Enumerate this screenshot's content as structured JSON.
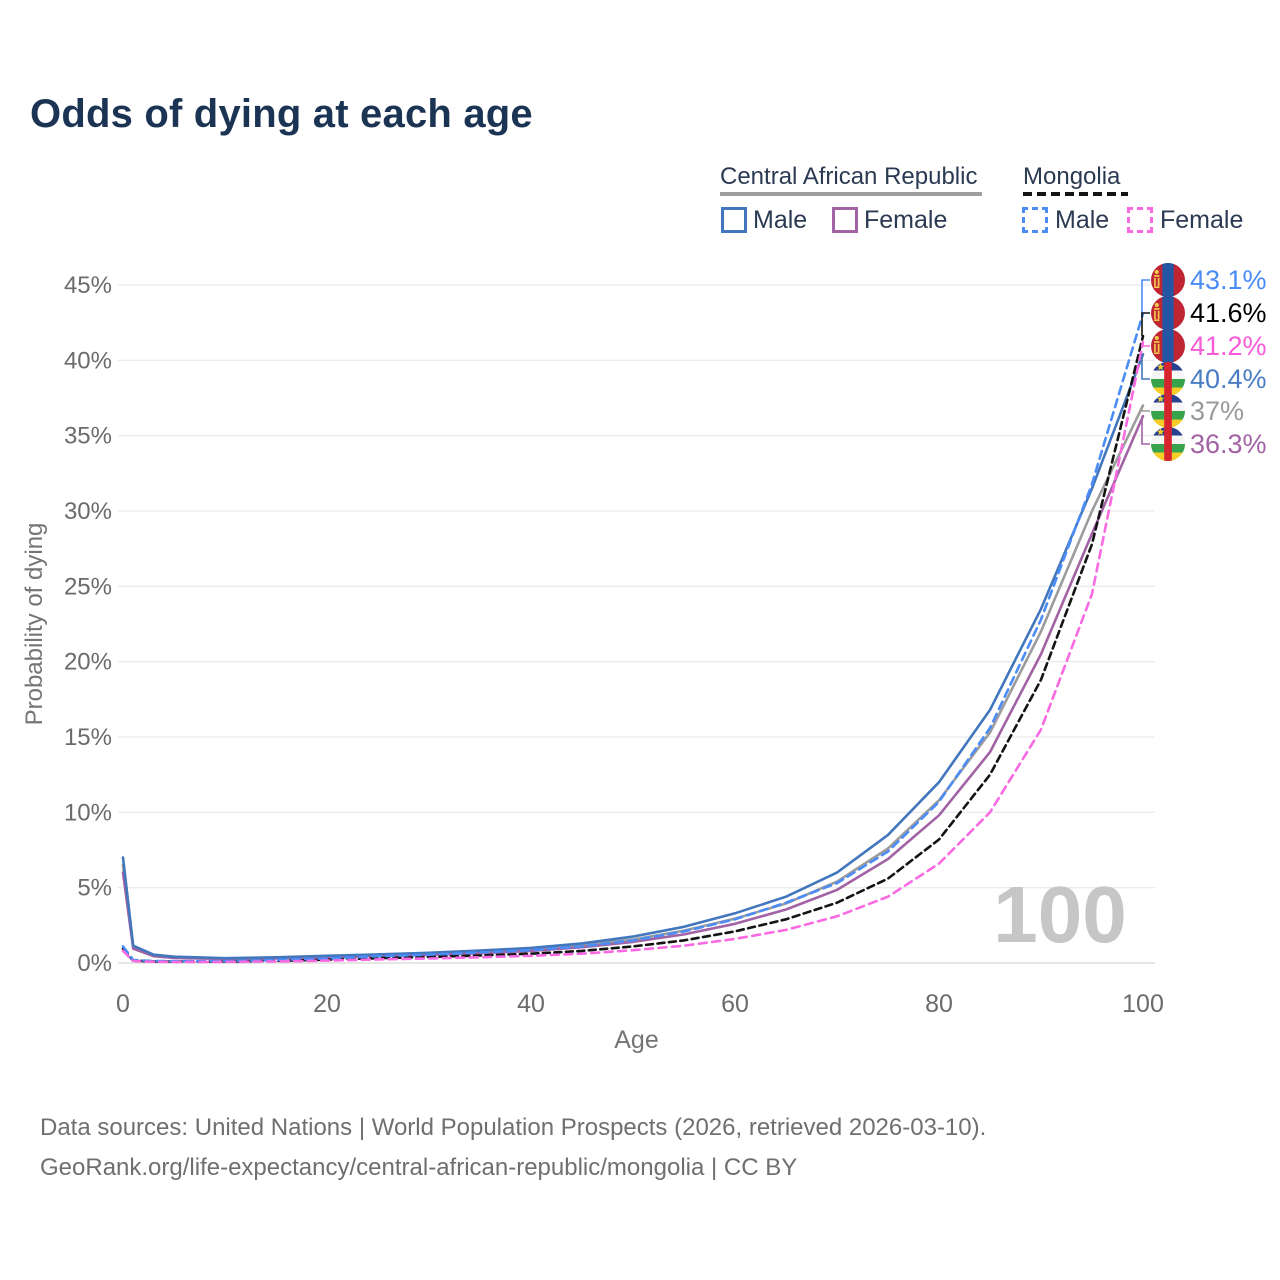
{
  "title": "Odds of dying at each age",
  "legend": {
    "groups": [
      {
        "label": "Central African Republic",
        "line_style": "solid",
        "underline_color": "#9e9e9e",
        "items": [
          {
            "label": "Male",
            "color": "#4276bd"
          },
          {
            "label": "Female",
            "color": "#a263a5"
          }
        ]
      },
      {
        "label": "Mongolia",
        "line_style": "dashed",
        "underline_color": "#141414",
        "items": [
          {
            "label": "Male",
            "color": "#4b8cf6"
          },
          {
            "label": "Female",
            "color": "#f96ae2"
          }
        ]
      }
    ]
  },
  "chart_data": {
    "type": "line",
    "title": "Odds of dying at each age",
    "xlabel": "Age",
    "ylabel": "Probability of dying",
    "xlim": [
      0,
      100
    ],
    "ylim_pct": [
      0,
      47
    ],
    "xticks": [
      0,
      20,
      40,
      60,
      80,
      100
    ],
    "yticks_pct": [
      0,
      5,
      10,
      15,
      20,
      25,
      30,
      35,
      40,
      45
    ],
    "ytick_suffix": "%",
    "grid": "horizontal",
    "legend_position": "top-right",
    "watermark": "100",
    "x_ages": [
      0,
      1,
      3,
      5,
      10,
      15,
      20,
      25,
      30,
      35,
      40,
      45,
      50,
      55,
      60,
      65,
      70,
      75,
      80,
      85,
      90,
      95,
      100
    ],
    "series": [
      {
        "name": "Central African Republic Both",
        "country": "Central African Republic",
        "sex": "both",
        "color": "#9c9c9c",
        "dash": "solid",
        "values_pct": [
          6.5,
          1.05,
          0.5,
          0.38,
          0.3,
          0.34,
          0.43,
          0.51,
          0.6,
          0.73,
          0.9,
          1.17,
          1.55,
          2.15,
          2.95,
          3.95,
          5.4,
          7.6,
          10.8,
          15.3,
          22.0,
          30.0,
          37.0
        ],
        "end_label": {
          "text": "37%",
          "color": "#999999",
          "flag": "car"
        }
      },
      {
        "name": "Central African Republic Female",
        "country": "Central African Republic",
        "sex": "female",
        "color": "#a263a5",
        "dash": "solid",
        "values_pct": [
          6.0,
          0.95,
          0.45,
          0.34,
          0.27,
          0.3,
          0.38,
          0.45,
          0.53,
          0.65,
          0.8,
          1.05,
          1.4,
          1.9,
          2.6,
          3.55,
          4.85,
          6.9,
          9.8,
          14.0,
          20.5,
          28.5,
          36.3
        ],
        "end_label": {
          "text": "36.3%",
          "color": "#a263a5",
          "flag": "car"
        }
      },
      {
        "name": "Central African Republic Male",
        "country": "Central African Republic",
        "sex": "male",
        "color": "#4276bd",
        "dash": "solid",
        "values_pct": [
          7.0,
          1.15,
          0.55,
          0.42,
          0.32,
          0.38,
          0.48,
          0.57,
          0.68,
          0.82,
          1.0,
          1.3,
          1.75,
          2.4,
          3.3,
          4.4,
          6.0,
          8.5,
          12.0,
          16.8,
          23.5,
          31.5,
          40.4
        ],
        "end_label": {
          "text": "40.4%",
          "color": "#4a7cc4",
          "flag": "car"
        }
      },
      {
        "name": "Mongolia Both",
        "country": "Mongolia",
        "sex": "both",
        "color": "#141414",
        "dash": "dashed",
        "values_pct": [
          0.95,
          0.16,
          0.1,
          0.09,
          0.09,
          0.14,
          0.22,
          0.32,
          0.4,
          0.5,
          0.62,
          0.8,
          1.1,
          1.5,
          2.1,
          2.9,
          4.0,
          5.6,
          8.2,
          12.5,
          18.8,
          27.8,
          41.6
        ],
        "end_label": {
          "text": "41.6%",
          "color": "#000000",
          "flag": "mng"
        }
      },
      {
        "name": "Mongolia Male",
        "country": "Mongolia",
        "sex": "male",
        "color": "#4b8cf6",
        "dash": "dashed",
        "values_pct": [
          1.1,
          0.2,
          0.13,
          0.12,
          0.12,
          0.2,
          0.3,
          0.45,
          0.55,
          0.7,
          0.85,
          1.1,
          1.5,
          2.1,
          2.9,
          4.0,
          5.3,
          7.4,
          10.7,
          15.6,
          22.8,
          31.8,
          43.1
        ],
        "end_label": {
          "text": "43.1%",
          "color": "#4a8cf6",
          "flag": "mng"
        }
      },
      {
        "name": "Mongolia Female",
        "country": "Mongolia",
        "sex": "female",
        "color": "#f96ae2",
        "dash": "dashed",
        "values_pct": [
          0.8,
          0.13,
          0.08,
          0.07,
          0.07,
          0.1,
          0.16,
          0.24,
          0.3,
          0.38,
          0.48,
          0.62,
          0.85,
          1.15,
          1.6,
          2.2,
          3.1,
          4.4,
          6.6,
          10.0,
          15.5,
          24.5,
          41.2
        ],
        "end_label": {
          "text": "41.2%",
          "color": "#f85ad8",
          "flag": "mng"
        }
      }
    ]
  },
  "footer": {
    "line1": "Data sources: United Nations | World Population Prospects (2026, retrieved 2026-03-10).",
    "line2": "GeoRank.org/life-expectancy/central-african-republic/mongolia | CC BY"
  }
}
